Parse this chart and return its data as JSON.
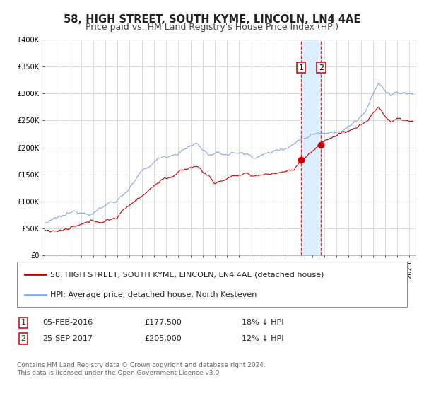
{
  "title": "58, HIGH STREET, SOUTH KYME, LINCOLN, LN4 4AE",
  "subtitle": "Price paid vs. HM Land Registry's House Price Index (HPI)",
  "legend_label_red": "58, HIGH STREET, SOUTH KYME, LINCOLN, LN4 4AE (detached house)",
  "legend_label_blue": "HPI: Average price, detached house, North Kesteven",
  "sale1_date": "05-FEB-2016",
  "sale1_price": "£177,500",
  "sale1_hpi": "18% ↓ HPI",
  "sale1_year": 2016.09,
  "sale1_value": 177500,
  "sale2_date": "25-SEP-2017",
  "sale2_price": "£205,000",
  "sale2_hpi": "12% ↓ HPI",
  "sale2_year": 2017.73,
  "sale2_value": 205000,
  "ylim": [
    0,
    400000
  ],
  "xlim_start": 1995.0,
  "xlim_end": 2025.5,
  "grid_color": "#cccccc",
  "red_color": "#cc0000",
  "blue_color": "#88aadd",
  "span_color": "#ddeeff",
  "background_color": "#ffffff",
  "footer_text": "Contains HM Land Registry data © Crown copyright and database right 2024.\nThis data is licensed under the Open Government Licence v3.0.",
  "title_fontsize": 10.5,
  "subtitle_fontsize": 9,
  "tick_fontsize": 7,
  "legend_fontsize": 8,
  "footer_fontsize": 6.5
}
